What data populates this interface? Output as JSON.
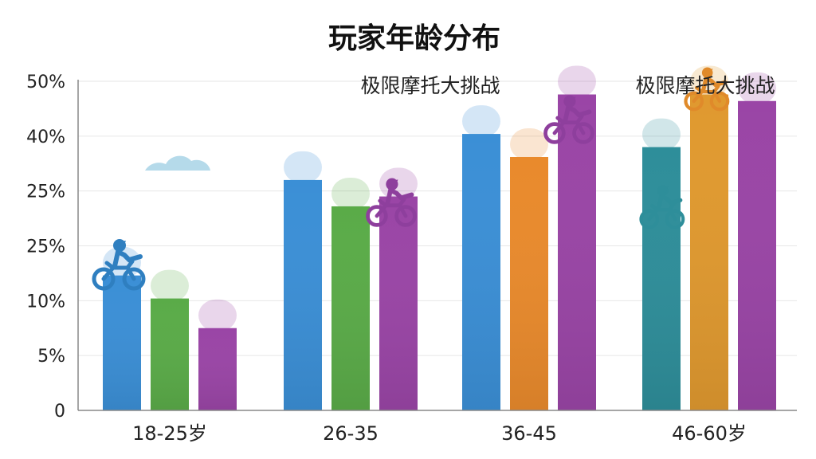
{
  "chart_data": {
    "type": "bar",
    "title": "玩家年龄分布",
    "categories": [
      "18-25岁",
      "26-35",
      "36-45",
      "46-60岁"
    ],
    "y_tick_labels": [
      "0",
      "5%",
      "10%",
      "25%",
      "25%",
      "40%",
      "50%"
    ],
    "ylim": [
      0,
      50
    ],
    "grid": true,
    "annotations": [
      "极限摩托大挑战",
      "极限摩托大挑战"
    ],
    "series": [
      {
        "values": [
          20.5,
          35,
          42,
          40
        ],
        "color": "#3b8fd6"
      },
      {
        "values": [
          17,
          31,
          38.5,
          48
        ],
        "color": "#5aab48"
      },
      {
        "values": [
          12.5,
          32.5,
          48,
          47
        ],
        "color": "#9a45a6"
      }
    ],
    "bar_colors": [
      [
        "#3b8fd6",
        "#5aab48",
        "#9a45a6"
      ],
      [
        "#3b8fd6",
        "#5aab48",
        "#9a45a6"
      ],
      [
        "#3b8fd6",
        "#e98a2c",
        "#9a45a6"
      ],
      [
        "#2e8e9a",
        "#e0992f",
        "#9a45a6"
      ]
    ],
    "icons": [
      "motocross-rider-icon",
      "cloud-icon"
    ]
  }
}
